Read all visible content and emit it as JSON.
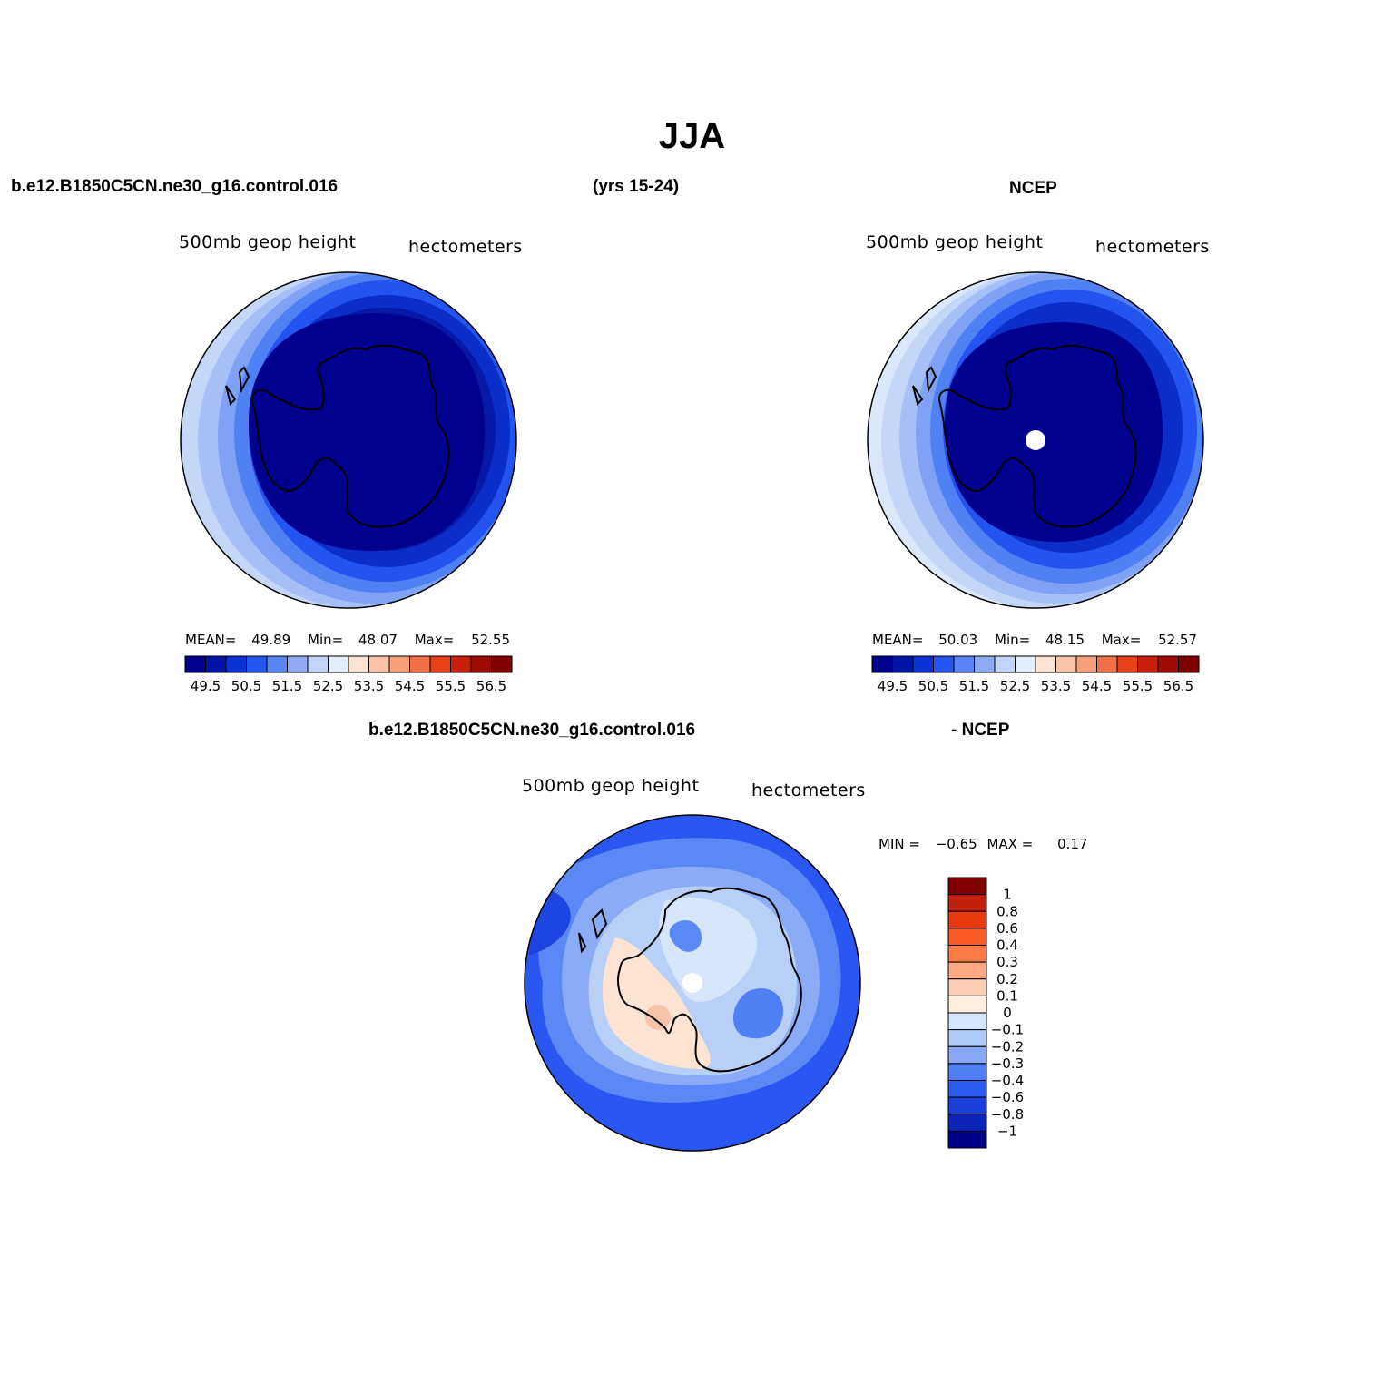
{
  "title": "JJA",
  "top_left": {
    "case_name": "b.e12.B1850C5CN.ne30_g16.control.016",
    "years": "(yrs 15-24)",
    "field": "500mb  geop  height",
    "units": "hectometers",
    "stats": {
      "mean_label": "MEAN=",
      "mean": "49.89",
      "min_label": "Min=",
      "min": "48.07",
      "max_label": "Max=",
      "max": "52.55"
    }
  },
  "top_right": {
    "case_name": "NCEP",
    "field": "500mb  geop  height",
    "units": "hectometers",
    "stats": {
      "mean_label": "MEAN=",
      "mean": "50.03",
      "min_label": "Min=",
      "min": "48.15",
      "max_label": "Max=",
      "max": "52.57"
    }
  },
  "bottom": {
    "case_name": "b.e12.B1850C5CN.ne30_g16.control.016",
    "minus_label": "- NCEP",
    "field": "500mb  geop  height",
    "units": "hectometers",
    "minmax": {
      "min_label": "MIN =",
      "min": "−0.65",
      "max_label": "MAX =",
      "max": "0.17"
    }
  },
  "abs_colorbar": {
    "colors": [
      "#00008f",
      "#0014a8",
      "#0a32d4",
      "#2356f0",
      "#5a84f5",
      "#8faaf5",
      "#c4d4f8",
      "#e4eefb",
      "#fde3d2",
      "#fbc3a6",
      "#f8a07a",
      "#f27048",
      "#e84018",
      "#c8200c",
      "#a00c04",
      "#800000"
    ],
    "tick_labels": [
      "49.5",
      "50.5",
      "51.5",
      "52.5",
      "53.5",
      "54.5",
      "55.5",
      "56.5"
    ]
  },
  "diff_colorbar": {
    "colors": [
      "#800000",
      "#c0200a",
      "#e83a0c",
      "#fa5a26",
      "#fc7a48",
      "#fca880",
      "#fdcfb2",
      "#fdeee0",
      "#d4e6fb",
      "#b0cbf8",
      "#88a8f6",
      "#4f80f4",
      "#2a5cf0",
      "#1a3ed8",
      "#0c24b8",
      "#00008a"
    ],
    "tick_labels": [
      "1",
      "0.8",
      "0.6",
      "0.4",
      "0.3",
      "0.2",
      "0.1",
      "0",
      "−0.1",
      "−0.2",
      "−0.3",
      "−0.4",
      "−0.6",
      "−0.8",
      "−1"
    ]
  },
  "map_colors": {
    "outer": "#c6d6f8",
    "ring1": "#a6c0f7",
    "ring2": "#7fa2f5",
    "ring3": "#4f80f4",
    "ring4": "#2454ef",
    "ring5": "#0c2ec8",
    "ring6": "#0518a6",
    "core": "#00008f",
    "diff_outer": "#2a56f2",
    "diff_mid": "#5a88f4",
    "diff_light": "#8aacf6",
    "diff_pale": "#b8d0f8",
    "diff_paler": "#d8e6fb",
    "diff_warm": "#fde3d2",
    "diff_warm2": "#f8c4a8",
    "diff_dark": "#1c44e0"
  }
}
